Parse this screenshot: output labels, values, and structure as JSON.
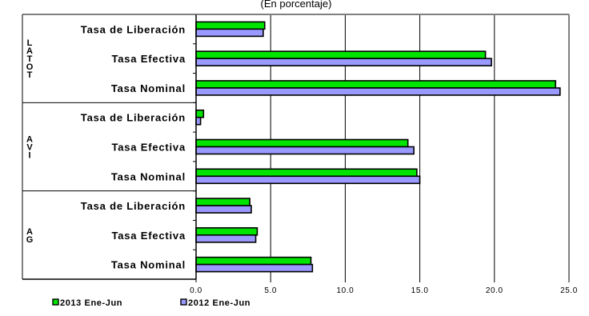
{
  "chart_data": {
    "type": "bar",
    "orientation": "horizontal",
    "subtitle": "(En porcentaje)",
    "groups": [
      {
        "label": [
          "L",
          "A",
          "T",
          "O",
          "T"
        ],
        "categories": [
          "Tasa de Liberación",
          "Tasa Efectiva",
          "Tasa Nominal"
        ]
      },
      {
        "label": [
          "A",
          "V",
          "I"
        ],
        "categories": [
          "Tasa de Liberación",
          "Tasa Efectiva",
          "Tasa Nominal"
        ]
      },
      {
        "label": [
          "A",
          "G"
        ],
        "categories": [
          "Tasa de Liberación",
          "Tasa Efectiva",
          "Tasa Nominal"
        ]
      }
    ],
    "series": [
      {
        "name": "2013 Ene-Jun",
        "color": "#00e400",
        "values": [
          4.6,
          19.4,
          24.1,
          0.5,
          14.2,
          14.8,
          3.6,
          4.1,
          7.7
        ]
      },
      {
        "name": "2012 Ene-Jun",
        "color": "#9999ff",
        "values": [
          4.5,
          19.8,
          24.4,
          0.3,
          14.6,
          15.0,
          3.7,
          4.0,
          7.8
        ]
      }
    ],
    "xlim": [
      0,
      25
    ],
    "xticks": [
      "0.0",
      "5.0",
      "10.0",
      "15.0",
      "20.0",
      "25.0"
    ],
    "grid": true,
    "legend_position": "bottom-left"
  }
}
